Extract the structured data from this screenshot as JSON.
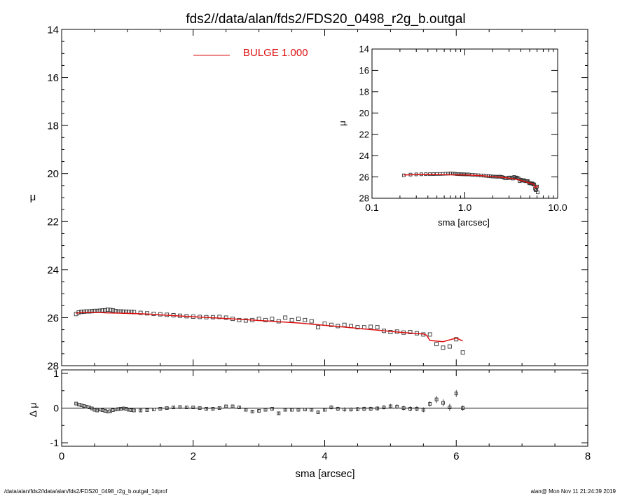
{
  "page_title": "fds2//data/alan/fds2/FDS20_0498_r2g_b.outgal",
  "footer": {
    "left": "/data/alan/fds2//data/alan/fds2/FDS20_0498_r2g_b.outgal_1dprof",
    "right": "alan@  Mon Nov 11 21:24:39 2019"
  },
  "colors": {
    "model": "#dd1111",
    "points": "#333333",
    "axes": "#000000",
    "background": "#ffffff"
  },
  "chart_data": [
    {
      "type": "scatter",
      "name": "main-profile",
      "title": "fds2//data/alan/fds2/FDS20_0498_r2g_b.outgal",
      "xlabel": "sma [arcsec]",
      "ylabel": "μ",
      "xlim": [
        0,
        8
      ],
      "ylim": [
        28,
        14
      ],
      "y_inverted": true,
      "xticks": [
        0,
        2,
        4,
        6,
        8
      ],
      "yticks": [
        14,
        16,
        18,
        20,
        22,
        24,
        26,
        28
      ],
      "legend": {
        "placement": "top-center",
        "entries": [
          {
            "label": "BULGE  1.000",
            "color": "#dd1111"
          }
        ]
      },
      "series": [
        {
          "kind": "points",
          "x": [
            0.22,
            0.26,
            0.3,
            0.34,
            0.38,
            0.42,
            0.46,
            0.5,
            0.54,
            0.58,
            0.62,
            0.66,
            0.7,
            0.74,
            0.78,
            0.82,
            0.86,
            0.9,
            0.94,
            0.98,
            1.02,
            1.06,
            1.1,
            1.2,
            1.3,
            1.4,
            1.5,
            1.6,
            1.7,
            1.8,
            1.9,
            2.0,
            2.1,
            2.2,
            2.3,
            2.4,
            2.5,
            2.6,
            2.7,
            2.8,
            2.9,
            3.0,
            3.1,
            3.2,
            3.3,
            3.4,
            3.5,
            3.6,
            3.7,
            3.8,
            3.9,
            4.0,
            4.1,
            4.2,
            4.3,
            4.4,
            4.5,
            4.6,
            4.7,
            4.8,
            4.9,
            5.0,
            5.1,
            5.2,
            5.3,
            5.4,
            5.5,
            5.6,
            5.7,
            5.8,
            5.9,
            6.0,
            6.1
          ],
          "y": [
            25.85,
            25.78,
            25.76,
            25.75,
            25.74,
            25.74,
            25.73,
            25.72,
            25.72,
            25.71,
            25.7,
            25.69,
            25.67,
            25.68,
            25.7,
            25.73,
            25.74,
            25.74,
            25.75,
            25.75,
            25.76,
            25.76,
            25.77,
            25.8,
            25.82,
            25.84,
            25.86,
            25.88,
            25.9,
            25.92,
            25.94,
            25.96,
            25.97,
            25.98,
            25.98,
            25.97,
            26.0,
            26.05,
            26.1,
            26.12,
            26.1,
            26.05,
            26.1,
            26.05,
            26.15,
            26.0,
            26.1,
            26.05,
            26.1,
            26.15,
            26.4,
            26.25,
            26.3,
            26.35,
            26.3,
            26.35,
            26.4,
            26.4,
            26.38,
            26.4,
            26.55,
            26.6,
            26.58,
            26.62,
            26.6,
            26.65,
            26.7,
            26.7,
            27.1,
            27.25,
            27.2,
            26.9,
            27.45
          ]
        },
        {
          "kind": "line",
          "label": "BULGE  1.000",
          "x": [
            0.22,
            0.3,
            0.5,
            0.7,
            1.0,
            1.3,
            1.6,
            2.0,
            2.4,
            2.8,
            3.2,
            3.6,
            4.0,
            4.4,
            4.8,
            5.2,
            5.4,
            5.5,
            5.55,
            5.6,
            5.8,
            6.0,
            6.1
          ],
          "y": [
            25.82,
            25.78,
            25.78,
            25.8,
            25.82,
            25.85,
            25.9,
            25.96,
            26.02,
            26.08,
            26.15,
            26.22,
            26.32,
            26.42,
            26.52,
            26.62,
            26.66,
            26.68,
            26.73,
            26.95,
            27.0,
            26.85,
            26.97
          ]
        }
      ]
    },
    {
      "type": "scatter",
      "name": "residuals",
      "xlabel": "sma [arcsec]",
      "ylabel": "Δ μ",
      "xlim": [
        0,
        8
      ],
      "ylim": [
        -1.1,
        1.1
      ],
      "yticks": [
        -1,
        0,
        1
      ],
      "reference_line": 0,
      "series": [
        {
          "kind": "points",
          "x": [
            0.22,
            0.26,
            0.3,
            0.34,
            0.38,
            0.42,
            0.46,
            0.5,
            0.54,
            0.58,
            0.62,
            0.66,
            0.7,
            0.74,
            0.78,
            0.82,
            0.86,
            0.9,
            0.94,
            0.98,
            1.02,
            1.06,
            1.1,
            1.2,
            1.3,
            1.4,
            1.5,
            1.6,
            1.7,
            1.8,
            1.9,
            2.0,
            2.1,
            2.2,
            2.3,
            2.4,
            2.5,
            2.6,
            2.7,
            2.8,
            2.9,
            3.0,
            3.1,
            3.2,
            3.3,
            3.4,
            3.5,
            3.6,
            3.7,
            3.8,
            3.9,
            4.0,
            4.1,
            4.2,
            4.3,
            4.4,
            4.5,
            4.6,
            4.7,
            4.8,
            4.9,
            5.0,
            5.1,
            5.2,
            5.3,
            5.4,
            5.5,
            5.6,
            5.7,
            5.8,
            5.9,
            6.0,
            6.1
          ],
          "y": [
            0.13,
            0.1,
            0.08,
            0.06,
            0.04,
            0.02,
            -0.01,
            -0.05,
            -0.07,
            -0.04,
            -0.06,
            -0.08,
            -0.1,
            -0.09,
            -0.06,
            -0.04,
            -0.03,
            -0.02,
            -0.01,
            -0.02,
            -0.05,
            -0.06,
            -0.07,
            -0.07,
            -0.06,
            -0.04,
            -0.02,
            0.0,
            0.02,
            0.03,
            0.02,
            0.02,
            0.0,
            -0.02,
            -0.02,
            0.0,
            0.05,
            0.05,
            0.02,
            -0.05,
            -0.1,
            -0.08,
            -0.05,
            -0.02,
            -0.15,
            -0.05,
            -0.05,
            -0.05,
            -0.04,
            -0.05,
            -0.12,
            -0.05,
            0.02,
            -0.02,
            -0.04,
            -0.04,
            -0.03,
            -0.02,
            -0.02,
            -0.01,
            0.02,
            0.05,
            0.04,
            0.0,
            -0.02,
            -0.02,
            -0.05,
            0.12,
            0.25,
            0.15,
            0.02,
            0.42,
            0.0
          ],
          "errors": [
            0.03,
            0.03,
            0.03,
            0.03,
            0.03,
            0.03,
            0.03,
            0.03,
            0.03,
            0.03,
            0.03,
            0.03,
            0.03,
            0.03,
            0.03,
            0.03,
            0.03,
            0.03,
            0.03,
            0.03,
            0.03,
            0.03,
            0.03,
            0.03,
            0.03,
            0.03,
            0.03,
            0.03,
            0.03,
            0.03,
            0.03,
            0.03,
            0.03,
            0.03,
            0.03,
            0.03,
            0.04,
            0.04,
            0.04,
            0.04,
            0.04,
            0.04,
            0.05,
            0.05,
            0.05,
            0.05,
            0.05,
            0.05,
            0.05,
            0.05,
            0.05,
            0.05,
            0.06,
            0.06,
            0.06,
            0.06,
            0.06,
            0.06,
            0.06,
            0.06,
            0.06,
            0.07,
            0.07,
            0.07,
            0.07,
            0.07,
            0.07,
            0.08,
            0.1,
            0.1,
            0.1,
            0.1,
            0.08
          ]
        }
      ]
    },
    {
      "type": "scatter",
      "name": "inset-log-profile",
      "xlabel": "sma [arcsec]",
      "ylabel": "μ",
      "xscale": "log",
      "xlim": [
        0.1,
        10.0
      ],
      "ylim": [
        28,
        14
      ],
      "y_inverted": true,
      "xticks": [
        0.1,
        1.0,
        10.0
      ],
      "xtick_labels": [
        "0.1",
        "1.0",
        "10.0"
      ],
      "yticks": [
        14,
        16,
        18,
        20,
        22,
        24,
        26,
        28
      ],
      "series": [
        {
          "kind": "points",
          "x": [
            0.22,
            0.26,
            0.3,
            0.34,
            0.38,
            0.42,
            0.46,
            0.5,
            0.54,
            0.58,
            0.62,
            0.66,
            0.7,
            0.74,
            0.78,
            0.82,
            0.86,
            0.9,
            0.94,
            0.98,
            1.02,
            1.06,
            1.1,
            1.2,
            1.3,
            1.4,
            1.5,
            1.6,
            1.7,
            1.8,
            1.9,
            2.0,
            2.1,
            2.2,
            2.3,
            2.4,
            2.5,
            2.6,
            2.7,
            2.8,
            2.9,
            3.0,
            3.1,
            3.2,
            3.3,
            3.4,
            3.5,
            3.6,
            3.7,
            3.8,
            3.9,
            4.0,
            4.1,
            4.2,
            4.3,
            4.4,
            4.5,
            4.6,
            4.7,
            4.8,
            4.9,
            5.0,
            5.1,
            5.2,
            5.3,
            5.4,
            5.5,
            5.6,
            5.7,
            5.8,
            5.9,
            6.0,
            6.1
          ],
          "y": [
            25.85,
            25.78,
            25.76,
            25.75,
            25.74,
            25.74,
            25.73,
            25.72,
            25.72,
            25.71,
            25.7,
            25.69,
            25.67,
            25.68,
            25.7,
            25.73,
            25.74,
            25.74,
            25.75,
            25.75,
            25.76,
            25.76,
            25.77,
            25.8,
            25.82,
            25.84,
            25.86,
            25.88,
            25.9,
            25.92,
            25.94,
            25.96,
            25.97,
            25.98,
            25.98,
            25.97,
            26.0,
            26.05,
            26.1,
            26.12,
            26.1,
            26.05,
            26.1,
            26.05,
            26.15,
            26.0,
            26.1,
            26.05,
            26.1,
            26.15,
            26.4,
            26.25,
            26.3,
            26.35,
            26.3,
            26.35,
            26.4,
            26.4,
            26.38,
            26.4,
            26.55,
            26.6,
            26.58,
            26.62,
            26.6,
            26.65,
            26.7,
            26.7,
            27.1,
            27.25,
            27.2,
            26.9,
            27.45
          ]
        },
        {
          "kind": "line",
          "x": [
            0.22,
            0.3,
            0.5,
            0.7,
            1.0,
            1.3,
            1.6,
            2.0,
            2.4,
            2.8,
            3.2,
            3.6,
            4.0,
            4.4,
            4.8,
            5.2,
            5.4,
            5.5,
            5.55,
            5.6,
            5.8,
            6.0,
            6.1
          ],
          "y": [
            25.82,
            25.78,
            25.78,
            25.8,
            25.82,
            25.85,
            25.9,
            25.96,
            26.02,
            26.08,
            26.15,
            26.22,
            26.32,
            26.42,
            26.52,
            26.62,
            26.66,
            26.68,
            26.73,
            26.95,
            27.0,
            26.85,
            26.97
          ]
        }
      ]
    }
  ]
}
